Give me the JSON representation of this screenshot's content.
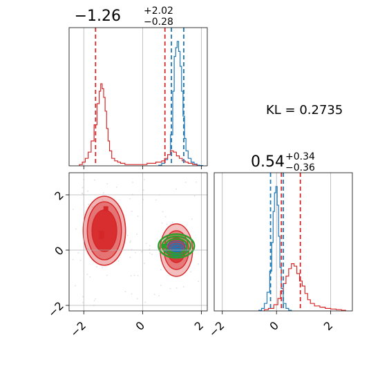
{
  "chart_data": [
    {
      "type": "histogram",
      "panel": "top-left",
      "title": "−1.26",
      "title_sup": "+2.02",
      "title_sub": "−0.28",
      "xlim": [
        -2.5,
        2.2
      ],
      "grid": true,
      "show_xticklabels": false,
      "series": [
        {
          "color": "#1f77b4",
          "bins_x": [
            0.6,
            0.7,
            0.8,
            0.9,
            1.0,
            1.05,
            1.1,
            1.15,
            1.2,
            1.25,
            1.3,
            1.35,
            1.4,
            1.45,
            1.5,
            1.6,
            1.7,
            1.8,
            1.9,
            2.0
          ],
          "counts": [
            0.5,
            2,
            5,
            9,
            25,
            60,
            88,
            95,
            100,
            92,
            80,
            60,
            40,
            22,
            12,
            6,
            3,
            1.5,
            0.5,
            0.2
          ],
          "quantile_lines": [
            0.98,
            1.4
          ]
        },
        {
          "color": "#d62728",
          "bins_x": [
            -2.1,
            -2.0,
            -1.9,
            -1.8,
            -1.7,
            -1.6,
            -1.5,
            -1.45,
            -1.4,
            -1.35,
            -1.3,
            -1.25,
            -1.2,
            -1.15,
            -1.1,
            -1.0,
            -0.9,
            -0.8,
            -0.7,
            -0.5,
            -0.3,
            0.0,
            0.3,
            0.6,
            0.7,
            0.8,
            0.9,
            1.0,
            1.1,
            1.2,
            1.3,
            1.4,
            1.5,
            1.6,
            1.8
          ],
          "counts": [
            1,
            3,
            6,
            11,
            20,
            33,
            50,
            60,
            66,
            62,
            55,
            44,
            30,
            20,
            12,
            6,
            4,
            3,
            2,
            1,
            1,
            1,
            2,
            3,
            4,
            6,
            9,
            12,
            11,
            8,
            6,
            4,
            3,
            2,
            1
          ],
          "quantile_lines": [
            -1.6,
            0.76
          ]
        }
      ]
    },
    {
      "type": "scatter",
      "panel": "bottom-left",
      "xlim": [
        -2.5,
        2.2
      ],
      "ylim": [
        -2.2,
        2.8
      ],
      "grid": true,
      "xticks": [
        "−2",
        "0",
        "2"
      ],
      "yticks": [
        "−2",
        "0",
        "2"
      ],
      "series": [
        {
          "name": "",
          "color": "#d62728",
          "mode": "density-contours",
          "centers": [
            [
              -1.3,
              0.7
            ],
            [
              1.15,
              0.1
            ]
          ],
          "markers": [
            [
              -1.25,
              1.5
            ],
            [
              -1.4,
              0.6
            ],
            [
              1.2,
              0.0
            ]
          ]
        },
        {
          "name": "",
          "color": "#1f77b4",
          "mode": "density-contours",
          "centers": [
            [
              1.15,
              0.05
            ]
          ]
        },
        {
          "name": "",
          "color": "#2ca02c",
          "mode": "ellipse-contours",
          "centers": [
            [
              1.15,
              0.15
            ]
          ]
        }
      ]
    },
    {
      "type": "histogram",
      "panel": "bottom-right",
      "title": "0.54",
      "title_sup": "+0.34",
      "title_sub": "−0.36",
      "xlim": [
        -2.3,
        2.8
      ],
      "grid": true,
      "xticks": [
        "−2",
        "0",
        "2"
      ],
      "series": [
        {
          "color": "#1f77b4",
          "bins_x": [
            -0.6,
            -0.5,
            -0.4,
            -0.3,
            -0.2,
            -0.15,
            -0.1,
            -0.05,
            0.0,
            0.05,
            0.1,
            0.15,
            0.2,
            0.3,
            0.4,
            0.5
          ],
          "counts": [
            0.5,
            2,
            6,
            15,
            32,
            55,
            80,
            95,
            100,
            85,
            60,
            35,
            18,
            6,
            2,
            0.5
          ],
          "quantile_lines": [
            -0.22,
            0.25
          ]
        },
        {
          "color": "#d62728",
          "bins_x": [
            -0.4,
            -0.2,
            0.0,
            0.1,
            0.2,
            0.3,
            0.4,
            0.5,
            0.6,
            0.7,
            0.8,
            0.9,
            1.0,
            1.1,
            1.2,
            1.3,
            1.5,
            1.7,
            1.9,
            2.1,
            2.3,
            2.5
          ],
          "counts": [
            1,
            2,
            5,
            10,
            16,
            22,
            28,
            34,
            38,
            36,
            30,
            24,
            20,
            14,
            9,
            6,
            4,
            3,
            2,
            1.5,
            1,
            0.5
          ],
          "quantile_lines": [
            0.18,
            0.88
          ]
        }
      ]
    }
  ],
  "annotation": "KL = 0.2735",
  "colors": {
    "blue": "#1f77b4",
    "red": "#d62728",
    "green": "#2ca02c",
    "grid": "#b0b0b0"
  }
}
